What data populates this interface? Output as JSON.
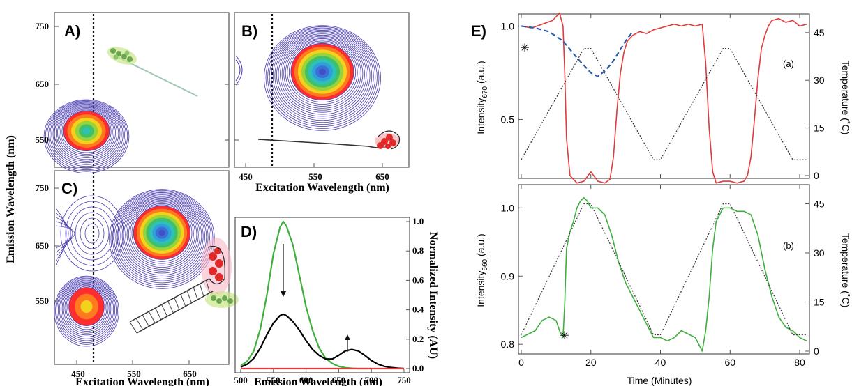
{
  "panels": {
    "A": {
      "letter": "A)"
    },
    "B": {
      "letter": "B)"
    },
    "C": {
      "letter": "C)"
    },
    "D": {
      "letter": "D)"
    },
    "E": {
      "letter": "E)"
    }
  },
  "contour": {
    "ylabel": "Emission Wavelength (nm)",
    "xlabel": "Excitation Wavelength (nm)",
    "y_ticks": [
      "750",
      "650",
      "550"
    ],
    "x_ticks": [
      "450",
      "550",
      "650"
    ]
  },
  "chart_data": [
    {
      "id": "D",
      "type": "line",
      "xlabel": "Emission Wavelength (nm)",
      "ylabel": "Normalized Intensity (AU)",
      "xlim": [
        500,
        750
      ],
      "ylim": [
        0,
        1.0
      ],
      "x_ticks": [
        500,
        550,
        600,
        650,
        700,
        750
      ],
      "y_ticks": [
        0.0,
        0.2,
        0.4,
        0.6,
        0.8,
        1.0
      ],
      "series": [
        {
          "color": "#3fae3f",
          "x": [
            500,
            510,
            520,
            530,
            540,
            550,
            560,
            565,
            570,
            580,
            590,
            600,
            610,
            620,
            630,
            640,
            650,
            660,
            670,
            680,
            690,
            700
          ],
          "y": [
            0.02,
            0.05,
            0.12,
            0.27,
            0.5,
            0.78,
            0.96,
            1.0,
            0.97,
            0.84,
            0.63,
            0.42,
            0.26,
            0.14,
            0.07,
            0.035,
            0.015,
            0.006,
            0.002,
            0.0,
            0.0,
            0.0
          ]
        },
        {
          "color": "#000000",
          "x": [
            500,
            510,
            520,
            530,
            540,
            550,
            560,
            565,
            570,
            580,
            590,
            600,
            610,
            620,
            630,
            640,
            650,
            660,
            670,
            680,
            690,
            700,
            710,
            720,
            730,
            740,
            750
          ],
          "y": [
            0.01,
            0.03,
            0.07,
            0.14,
            0.23,
            0.31,
            0.36,
            0.37,
            0.36,
            0.32,
            0.26,
            0.19,
            0.13,
            0.09,
            0.065,
            0.065,
            0.09,
            0.12,
            0.13,
            0.12,
            0.09,
            0.055,
            0.03,
            0.015,
            0.007,
            0.003,
            0.0
          ]
        },
        {
          "color": "#e03a3a",
          "x": [
            500,
            550,
            600,
            650,
            700,
            750
          ],
          "y": [
            0.0,
            0.0,
            0.0,
            0.0,
            0.0,
            0.0
          ]
        }
      ]
    },
    {
      "id": "E-a",
      "type": "line",
      "xlabel": "",
      "ylabel": "Intensity670 (a.u.)",
      "y2label": "Temperature (°C)",
      "xlim": [
        0,
        82
      ],
      "ylim": [
        0.2,
        1.05
      ],
      "y2lim": [
        0,
        50
      ],
      "y_ticks": [
        0.5,
        1.0
      ],
      "y2_ticks": [
        0,
        15,
        30,
        45
      ],
      "tag": "(a)",
      "series": [
        {
          "color": "#e03a3a",
          "style": "solid",
          "x": [
            0,
            3,
            6,
            9,
            11,
            12,
            12.5,
            13,
            14,
            16,
            18,
            20,
            22,
            24,
            25.5,
            26.5,
            27.5,
            28.5,
            29.5,
            30.5,
            32,
            34,
            36,
            38,
            40,
            42,
            44,
            46,
            48,
            50,
            52,
            53,
            54,
            55,
            56,
            58,
            60,
            62,
            64,
            65,
            66,
            67,
            68,
            69,
            70,
            71,
            72,
            74,
            76,
            78,
            80,
            82
          ],
          "y": [
            1.0,
            0.99,
            1.01,
            1.03,
            1.07,
            1.0,
            0.75,
            0.4,
            0.2,
            0.16,
            0.17,
            0.22,
            0.17,
            0.16,
            0.18,
            0.3,
            0.55,
            0.75,
            0.86,
            0.92,
            0.95,
            0.97,
            0.96,
            0.98,
            0.99,
            1.0,
            1.01,
            1.0,
            1.01,
            1.0,
            1.01,
            0.8,
            0.45,
            0.22,
            0.16,
            0.17,
            0.17,
            0.16,
            0.17,
            0.2,
            0.3,
            0.5,
            0.72,
            0.88,
            0.95,
            1.0,
            1.03,
            1.04,
            1.02,
            1.03,
            1.0,
            1.01
          ]
        },
        {
          "color": "#2f5aa8",
          "style": "dashed",
          "x": [
            0,
            4,
            8,
            12,
            16,
            20,
            22,
            24,
            26,
            28,
            30,
            32
          ],
          "y": [
            1.0,
            0.99,
            0.97,
            0.92,
            0.83,
            0.75,
            0.73,
            0.76,
            0.8,
            0.86,
            0.92,
            0.97
          ]
        },
        {
          "color": "#333333",
          "style": "dotted",
          "axis": "y2",
          "x": [
            0,
            18,
            20,
            38,
            40,
            58,
            60,
            78,
            80,
            82
          ],
          "y": [
            5,
            40,
            40,
            5,
            5,
            40,
            40,
            5,
            5,
            5
          ]
        }
      ]
    },
    {
      "id": "E-b",
      "type": "line",
      "xlabel": "Time (Minutes)",
      "ylabel": "Intensity560 (a.u.)",
      "y2label": "Temperature (°C)",
      "xlim": [
        0,
        82
      ],
      "ylim": [
        0.79,
        1.03
      ],
      "y2lim": [
        0,
        50
      ],
      "x_ticks": [
        0,
        20,
        40,
        60,
        80
      ],
      "y_ticks": [
        0.8,
        0.9,
        1.0
      ],
      "y2_ticks": [
        0,
        15,
        30,
        45
      ],
      "tag": "(b)",
      "series": [
        {
          "color": "#3fae3f",
          "style": "solid",
          "x": [
            0,
            2,
            4,
            6,
            8,
            10,
            11,
            12,
            12.5,
            13,
            14,
            15,
            16,
            17,
            18,
            19,
            20,
            22,
            24,
            26,
            28,
            30,
            32,
            34,
            36,
            38,
            40,
            42,
            44,
            46,
            48,
            50,
            51,
            52,
            53,
            54,
            55,
            56,
            57,
            58,
            60,
            62,
            64,
            66,
            68,
            70,
            72,
            74,
            76,
            78,
            80,
            82
          ],
          "y": [
            0.81,
            0.815,
            0.82,
            0.835,
            0.84,
            0.835,
            0.82,
            0.81,
            0.86,
            0.94,
            0.965,
            0.98,
            1.0,
            1.01,
            1.015,
            1.01,
            1.0,
            1.0,
            0.99,
            0.96,
            0.92,
            0.89,
            0.87,
            0.85,
            0.83,
            0.81,
            0.81,
            0.805,
            0.81,
            0.82,
            0.815,
            0.81,
            0.8,
            0.79,
            0.82,
            0.87,
            0.94,
            0.98,
            0.99,
            1.0,
            1.0,
            0.995,
            0.995,
            0.99,
            0.96,
            0.91,
            0.87,
            0.84,
            0.825,
            0.82,
            0.81,
            0.805
          ]
        },
        {
          "color": "#333333",
          "style": "dotted",
          "axis": "y2",
          "x": [
            0,
            18,
            20,
            38,
            40,
            58,
            60,
            78,
            80,
            82
          ],
          "y": [
            5,
            45,
            45,
            5,
            5,
            45,
            45,
            5,
            5,
            5
          ]
        }
      ]
    }
  ],
  "panelE": {
    "ylabel_a_main": "Intensity",
    "ylabel_a_sub": "670",
    "ylabel_a_unit": " (a.u.)",
    "ylabel_b_main": "Intensity",
    "ylabel_b_sub": "560",
    "ylabel_b_unit": " (a.u.)",
    "y2label": "Temperature (˚C)",
    "xlabel": "Time (Minutes)",
    "tag_a": "(a)",
    "tag_b": "(b)",
    "star": "✳",
    "ya_ticks": [
      "1.0",
      "0.5"
    ],
    "y2_ticks": [
      "45",
      "30",
      "15",
      "0"
    ],
    "yb_ticks": [
      "1.0",
      "0.9",
      "0.8"
    ],
    "x_ticks": [
      "0",
      "20",
      "40",
      "60",
      "80"
    ]
  },
  "colors": {
    "red": "#e03a3a",
    "green": "#3fae3f",
    "blue": "#2f5aa8",
    "contour": "#4b3fb2"
  }
}
